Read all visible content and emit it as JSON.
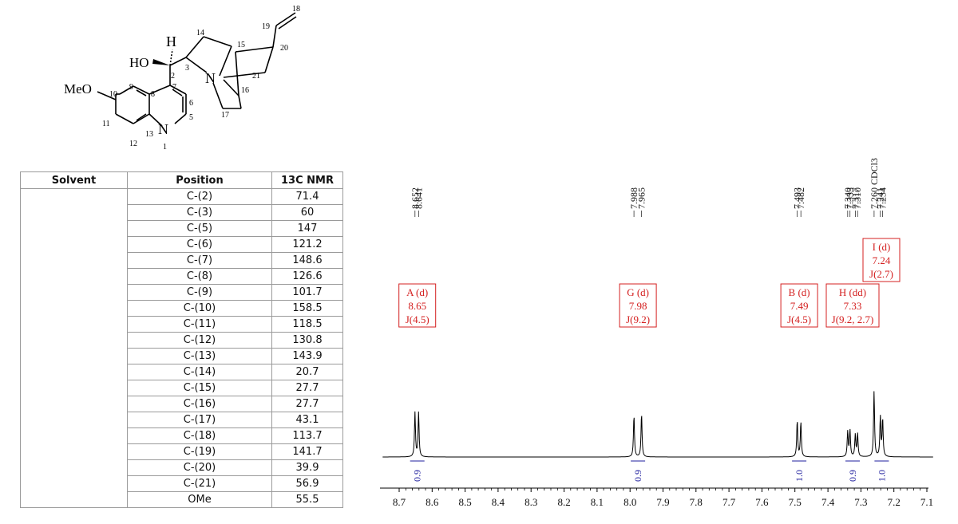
{
  "structure": {
    "labels": {
      "h": "H",
      "ho": "HO",
      "meo": "MeO",
      "n_quinuclidine": "N",
      "n_quinoline": "N",
      "numbers": [
        "18",
        "19",
        "20",
        "14",
        "15",
        "21",
        "16",
        "17",
        "3",
        "2",
        "9",
        "10",
        "8",
        "7",
        "6",
        "5",
        "11",
        "13",
        "12",
        "1"
      ]
    }
  },
  "table": {
    "headers": [
      "Solvent",
      "Position",
      "13C NMR"
    ],
    "rows": [
      {
        "position": "C-(2)",
        "shift": "71.4"
      },
      {
        "position": "C-(3)",
        "shift": "60"
      },
      {
        "position": "C-(5)",
        "shift": "147"
      },
      {
        "position": "C-(6)",
        "shift": "121.2"
      },
      {
        "position": "C-(7)",
        "shift": "148.6"
      },
      {
        "position": "C-(8)",
        "shift": "126.6"
      },
      {
        "position": "C-(9)",
        "shift": "101.7"
      },
      {
        "position": "C-(10)",
        "shift": "158.5"
      },
      {
        "position": "C-(11)",
        "shift": "118.5"
      },
      {
        "position": "C-(12)",
        "shift": "130.8"
      },
      {
        "position": "C-(13)",
        "shift": "143.9"
      },
      {
        "position": "C-(14)",
        "shift": "20.7"
      },
      {
        "position": "C-(15)",
        "shift": "27.7"
      },
      {
        "position": "C-(16)",
        "shift": "27.7"
      },
      {
        "position": "C-(17)",
        "shift": "43.1"
      },
      {
        "position": "C-(18)",
        "shift": "113.7"
      },
      {
        "position": "C-(19)",
        "shift": "141.7"
      },
      {
        "position": "C-(20)",
        "shift": "39.9"
      },
      {
        "position": "C-(21)",
        "shift": "56.9"
      },
      {
        "position": "OMe",
        "shift": "55.5"
      }
    ]
  },
  "chart_data": {
    "type": "line",
    "xlim": [
      8.75,
      7.08
    ],
    "x_ticks": [
      "8.7",
      "8.6",
      "8.5",
      "8.4",
      "8.3",
      "8.2",
      "8.1",
      "8.0",
      "7.9",
      "7.8",
      "7.7",
      "7.6",
      "7.5",
      "7.4",
      "7.3",
      "7.2",
      "7.1"
    ],
    "peaks": [
      {
        "ppm": 8.652,
        "label": "8.652",
        "height": 0.67
      },
      {
        "ppm": 8.641,
        "label": "8.641",
        "height": 0.67
      },
      {
        "ppm": 7.988,
        "label": "7.988",
        "height": 0.63
      },
      {
        "ppm": 7.965,
        "label": "7.965",
        "height": 0.66
      },
      {
        "ppm": 7.493,
        "label": "7.493",
        "height": 0.55
      },
      {
        "ppm": 7.482,
        "label": "7.482",
        "height": 0.53
      },
      {
        "ppm": 7.34,
        "label": "7.340",
        "height": 0.38
      },
      {
        "ppm": 7.333,
        "label": "7.333",
        "height": 0.4
      },
      {
        "ppm": 7.317,
        "label": "7.317",
        "height": 0.33
      },
      {
        "ppm": 7.31,
        "label": "7.310",
        "height": 0.35
      },
      {
        "ppm": 7.26,
        "label": "7.260 CDCl3",
        "height": 0.99
      },
      {
        "ppm": 7.241,
        "label": "7.241",
        "height": 0.6
      },
      {
        "ppm": 7.234,
        "label": "7.234",
        "height": 0.57
      }
    ],
    "assignments": [
      {
        "letter": "A (d)",
        "shift": "8.65",
        "j": "J(4.5)",
        "ppm": 8.645
      },
      {
        "letter": "G (d)",
        "shift": "7.98",
        "j": "J(9.2)",
        "ppm": 7.976
      },
      {
        "letter": "B (d)",
        "shift": "7.49",
        "j": "J(4.5)",
        "ppm": 7.487
      },
      {
        "letter": "H (dd)",
        "shift": "7.33",
        "j": "J(9.2, 2.7)",
        "ppm": 7.325
      },
      {
        "letter": "I (d)",
        "shift": "7.24",
        "j": "J(2.7)",
        "ppm": 7.238
      }
    ],
    "integrals": [
      {
        "ppm": 8.645,
        "value": "0.9"
      },
      {
        "ppm": 7.976,
        "value": "0.9"
      },
      {
        "ppm": 7.487,
        "value": "1.0"
      },
      {
        "ppm": 7.325,
        "value": "0.9"
      },
      {
        "ppm": 7.237,
        "value": "1.0"
      }
    ],
    "colors": {
      "annotation": "#d42020",
      "integral": "#1c1c9c",
      "trace": "#000000"
    }
  }
}
